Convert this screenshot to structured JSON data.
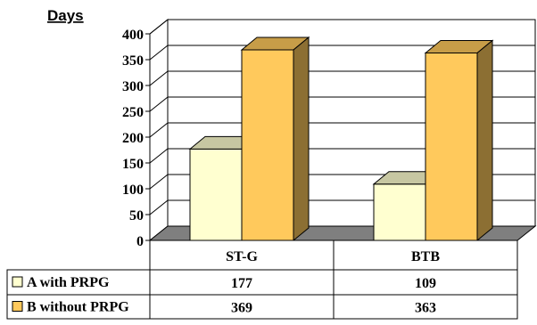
{
  "chart_data": {
    "type": "bar",
    "title": "",
    "ylabel": "Days",
    "xlabel": "",
    "categories": [
      "ST-G",
      "BTB"
    ],
    "series": [
      {
        "name": "A with PRPG",
        "values": [
          177,
          109
        ],
        "color": "#ffffd0",
        "value_labels": [
          "177",
          "109"
        ]
      },
      {
        "name": "B without PRPG",
        "values": [
          369,
          363
        ],
        "color": "#ffc95c",
        "value_labels": [
          "369",
          "363"
        ]
      }
    ],
    "ylim": [
      0,
      400
    ],
    "yticks": [
      "0",
      "50",
      "100",
      "150",
      "200",
      "250",
      "300",
      "350",
      "400"
    ],
    "grid": true,
    "three_d": true,
    "legend": "data-table-below"
  }
}
